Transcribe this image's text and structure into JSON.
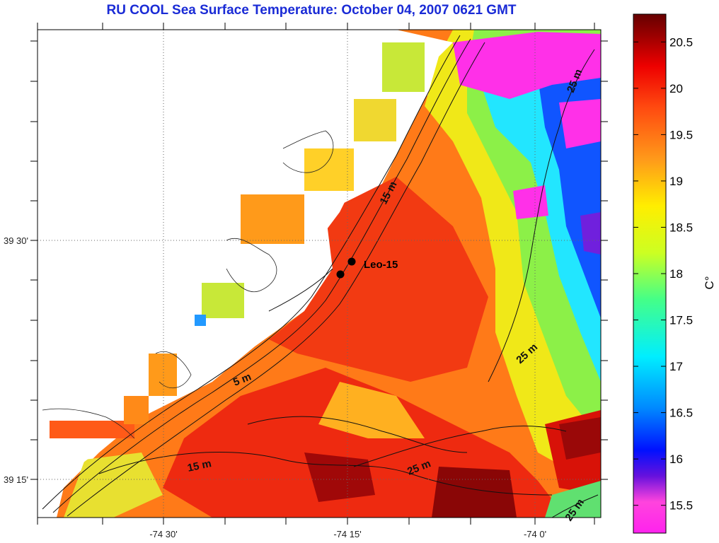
{
  "title": "RU COOL  Sea Surface Temperature:  October 04, 2007 0621 GMT",
  "map": {
    "lon_labels": [
      "-74 30'",
      "-74 15'",
      "-74 0'"
    ],
    "lat_labels": [
      "39 30'",
      "39 15'"
    ],
    "station_label": "Leo-15",
    "depth_labels": [
      "15 m",
      "5 m",
      "15 m",
      "25 m",
      "25 m",
      "25 m",
      "25 m"
    ]
  },
  "colorbar": {
    "ticks": [
      "20.5",
      "20",
      "19.5",
      "19",
      "18.5",
      "18",
      "17.5",
      "17",
      "16.5",
      "16",
      "15.5"
    ],
    "unit_label": "C°",
    "range": [
      15.2,
      20.8
    ],
    "colors": [
      "#ff22ee",
      "#ff44dd",
      "#6611dd",
      "#0011ff",
      "#0088ff",
      "#00eeff",
      "#44ff88",
      "#ccff22",
      "#ffee00",
      "#ff9a1a",
      "#ff4a10",
      "#ee0000",
      "#990000",
      "#660000"
    ]
  },
  "chart_data": {
    "type": "heatmap",
    "title": "RU COOL  Sea Surface Temperature:  October 04, 2007 0621 GMT",
    "xlabel": "",
    "ylabel": "",
    "x_ticks": [
      "-74 30'",
      "-74 15'",
      "-74 0'"
    ],
    "y_ticks": [
      "39 30'",
      "39 15'"
    ],
    "colorbar_label": "C°",
    "colorbar_range": [
      15.2,
      20.8
    ],
    "colorbar_ticks": [
      15.5,
      16,
      16.5,
      17,
      17.5,
      18,
      18.5,
      19,
      19.5,
      20,
      20.5
    ],
    "annotations": [
      "Leo-15",
      "15 m",
      "5 m",
      "25 m"
    ]
  }
}
